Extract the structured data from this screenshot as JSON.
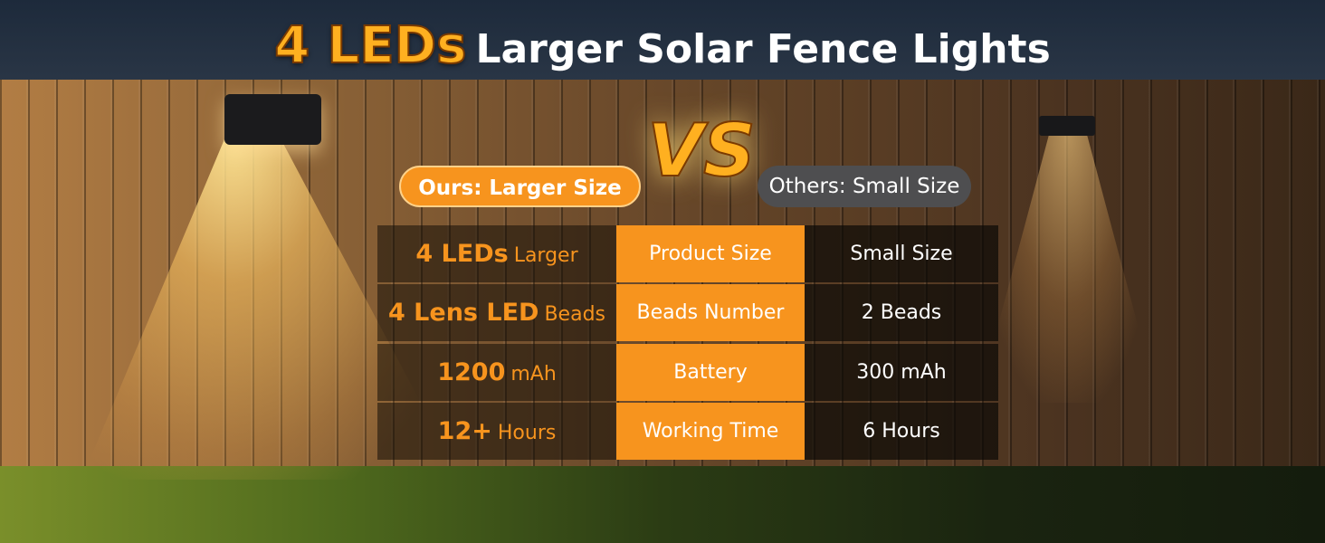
{
  "header": {
    "title_highlight": "4 LEDs",
    "title": "Larger Solar Fence Lights"
  },
  "versus": {
    "ours": "Ours: Larger Size",
    "vs": "VS",
    "others": "Others: Small Size"
  },
  "table": {
    "rows": [
      {
        "ours_main": "4 LEDs",
        "ours_suffix": "Larger",
        "feature": "Product Size",
        "others": "Small Size"
      },
      {
        "ours_main": "4 Lens LED",
        "ours_suffix": "Beads",
        "feature": "Beads Number",
        "others": "2 Beads"
      },
      {
        "ours_main": "1200",
        "ours_suffix": "mAh",
        "feature": "Battery",
        "others": "300 mAh"
      },
      {
        "ours_main": "12+",
        "ours_suffix": "Hours",
        "feature": "Working Time",
        "others": "6 Hours"
      }
    ]
  }
}
